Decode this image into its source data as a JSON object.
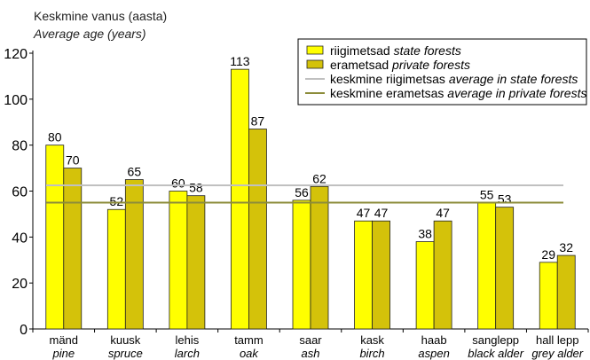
{
  "chart_data": {
    "type": "bar",
    "title_et": "Keskmine vanus (aasta)",
    "title_en": "Average age (years)",
    "categories": [
      {
        "et": "mänd",
        "en": "pine"
      },
      {
        "et": "kuusk",
        "en": "spruce"
      },
      {
        "et": "lehis",
        "en": "larch"
      },
      {
        "et": "tamm",
        "en": "oak"
      },
      {
        "et": "saar",
        "en": "ash"
      },
      {
        "et": "kask",
        "en": "birch"
      },
      {
        "et": "haab",
        "en": "aspen"
      },
      {
        "et": "sanglepp",
        "en": "black alder"
      },
      {
        "et": "hall lepp",
        "en": "grey alder"
      }
    ],
    "series": [
      {
        "name_et": "riigimetsad",
        "name_en": "state forests",
        "color": "#ffff00",
        "values": [
          80,
          52,
          60,
          113,
          56,
          47,
          38,
          55,
          29
        ]
      },
      {
        "name_et": "erametsad",
        "name_en": "private forests",
        "color": "#d4c20a",
        "values": [
          70,
          65,
          58,
          87,
          62,
          47,
          47,
          53,
          32
        ]
      }
    ],
    "reference_lines": [
      {
        "name_et": "keskmine riigimetsas",
        "name_en": "average in state forests",
        "color": "#c0c0c0",
        "value": 62.5
      },
      {
        "name_et": "keskmine erametsas",
        "name_en": "average in private forests",
        "color": "#8c8c3a",
        "value": 55
      }
    ],
    "ylim": [
      0,
      120
    ],
    "yticks": [
      0,
      20,
      40,
      60,
      80,
      100,
      120
    ],
    "legend_position": "top-right",
    "grid": false
  }
}
